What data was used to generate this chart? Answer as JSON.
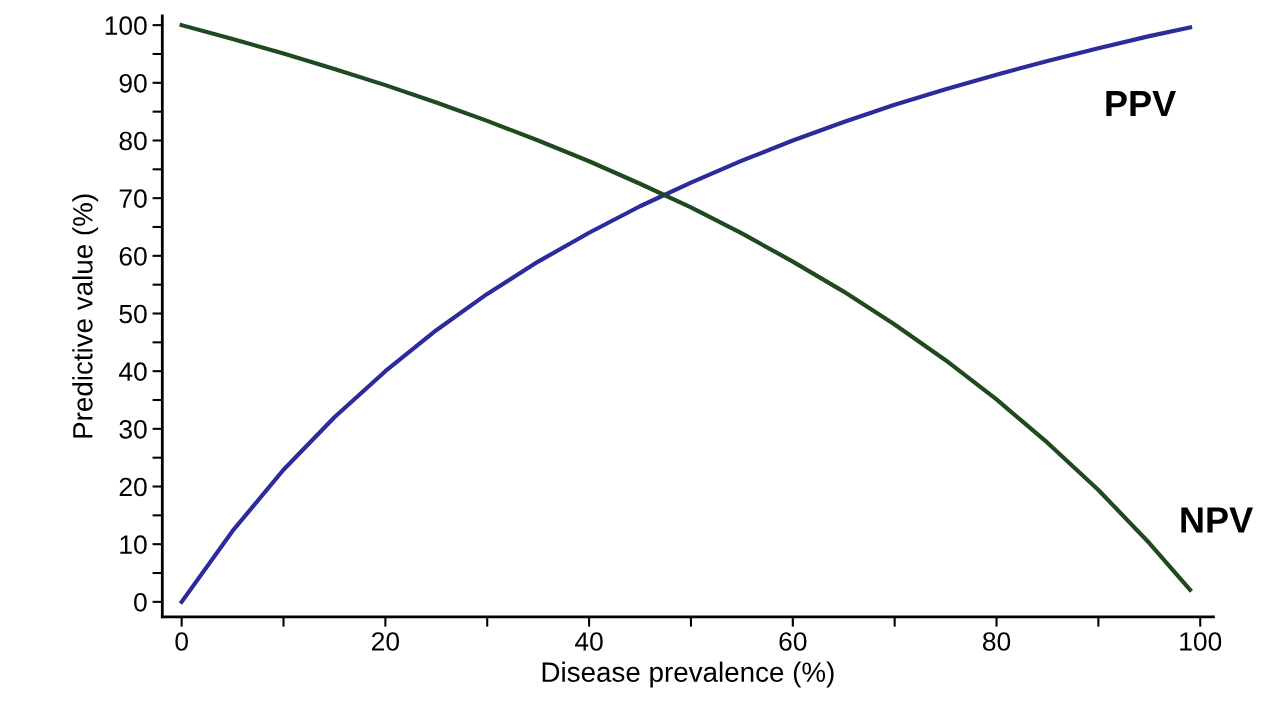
{
  "chart_data": {
    "type": "line",
    "xlabel": "Disease prevalence (%)",
    "ylabel": "Predictive value (%)",
    "x": [
      0,
      5,
      10,
      15,
      20,
      25,
      30,
      35,
      40,
      45,
      50,
      55,
      60,
      65,
      70,
      75,
      80,
      85,
      90,
      95,
      99
    ],
    "series": [
      {
        "name": "PPV",
        "color": "#2b2b9c",
        "values": [
          0,
          12.3,
          22.9,
          32.0,
          40.0,
          47.1,
          53.4,
          59.0,
          64.0,
          68.6,
          72.7,
          76.5,
          80.0,
          83.2,
          86.2,
          88.9,
          91.4,
          93.8,
          96.0,
          98.1,
          99.6
        ]
      },
      {
        "name": "NPV",
        "color": "#1f4a1f",
        "values": [
          100,
          97.6,
          95.1,
          92.4,
          89.6,
          86.6,
          83.4,
          80.0,
          76.4,
          72.5,
          68.4,
          63.9,
          59.0,
          53.8,
          48.1,
          41.9,
          35.1,
          27.6,
          19.4,
          10.2,
          2.1
        ]
      }
    ],
    "xlim": [
      -1.9,
      101.3
    ],
    "ylim": [
      -2.6,
      101.6
    ],
    "xticks": [
      0,
      {
        "value": 10,
        "label": null
      },
      20,
      {
        "value": 30,
        "label": null
      },
      40,
      {
        "value": 50,
        "label": null
      },
      60,
      {
        "value": 70,
        "label": null
      },
      80,
      {
        "value": 90,
        "label": null
      },
      100
    ],
    "yticks": [
      0,
      {
        "value": 5,
        "label": null
      },
      10,
      {
        "value": 15,
        "label": null
      },
      20,
      {
        "value": 25,
        "label": null
      },
      30,
      {
        "value": 35,
        "label": null
      },
      40,
      {
        "value": 45,
        "label": null
      },
      50,
      {
        "value": 55,
        "label": null
      },
      60,
      {
        "value": 65,
        "label": null
      },
      70,
      {
        "value": 75,
        "label": null
      },
      80,
      {
        "value": 85,
        "label": null
      },
      90,
      {
        "value": 95,
        "label": null
      },
      100
    ],
    "grid": false,
    "legend": false,
    "marker": "none",
    "line_style": "solid"
  }
}
